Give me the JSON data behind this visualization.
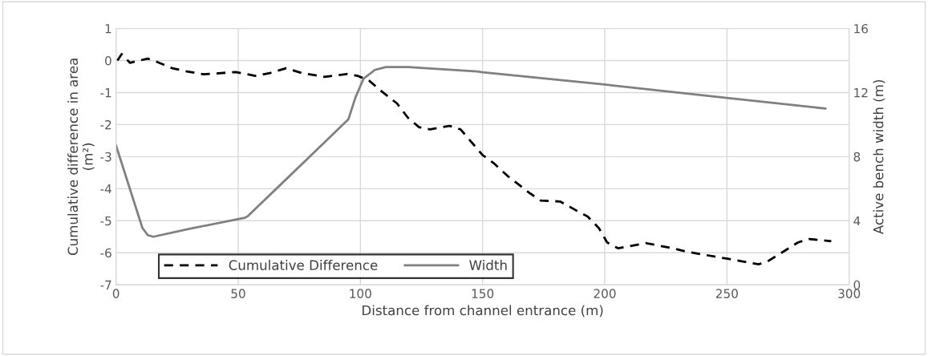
{
  "chart_data": {
    "type": "line",
    "xlabel": "Distance from channel entrance (m)",
    "ylabel": "Cumulative difference in area\n(m²)",
    "y2label": "Active bench width (m)",
    "xlim": [
      0,
      300
    ],
    "xticks": [
      0,
      50,
      100,
      150,
      200,
      250,
      300
    ],
    "ylim": [
      -7,
      1
    ],
    "yticks": [
      -7,
      -6,
      -5,
      -4,
      -3,
      -2,
      -1,
      0,
      1
    ],
    "y2lim": [
      0,
      16
    ],
    "y2ticks": [
      0,
      4,
      8,
      12,
      16
    ],
    "grid": true,
    "legend": "bottom",
    "line_style": "solid",
    "marker": "none",
    "series": [
      {
        "name": "Cumulative Difference",
        "color": "#000000",
        "line_style": "dashed",
        "x": [
          0.6,
          2.3,
          5.7,
          13,
          16.4,
          23,
          29,
          35.7,
          49,
          57,
          63,
          69.6,
          76,
          85.5,
          94.5,
          99,
          103.6,
          109,
          115,
          119.5,
          124,
          128.5,
          136.5,
          141,
          150,
          154.5,
          160.2,
          169.3,
          173.8,
          181.7,
          187.4,
          193,
          197.6,
          201,
          205.5,
          216.8,
          228,
          233.7,
          249.7,
          256.5,
          263,
          266.6,
          273.4,
          279,
          283.6,
          292.7
        ],
        "values": [
          0,
          0.2,
          -0.07,
          0.06,
          -0.03,
          -0.24,
          -0.34,
          -0.43,
          -0.36,
          -0.48,
          -0.39,
          -0.24,
          -0.39,
          -0.51,
          -0.42,
          -0.48,
          -0.63,
          -0.98,
          -1.34,
          -1.79,
          -2.08,
          -2.15,
          -2.04,
          -2.15,
          -2.95,
          -3.2,
          -3.6,
          -4.14,
          -4.37,
          -4.4,
          -4.64,
          -4.87,
          -5.23,
          -5.68,
          -5.86,
          -5.7,
          -5.86,
          -5.97,
          -6.18,
          -6.27,
          -6.36,
          -6.27,
          -5.95,
          -5.68,
          -5.57,
          -5.64
        ]
      },
      {
        "name": "Width",
        "color": "#808080",
        "axis": "y2",
        "x": [
          0,
          10.8,
          13,
          15.3,
          28.9,
          52.7,
          53.8,
          67.4,
          81,
          95.1,
          98,
          101.3,
          105.9,
          110.4,
          119.5,
          147.8,
          150,
          200,
          250,
          290.4
        ],
        "values": [
          8.7,
          3.55,
          3.1,
          3.0,
          3.46,
          4.18,
          4.27,
          6.26,
          8.25,
          10.33,
          11.7,
          12.87,
          13.41,
          13.59,
          13.59,
          13.32,
          13.27,
          12.5,
          11.66,
          11.0
        ]
      }
    ]
  }
}
